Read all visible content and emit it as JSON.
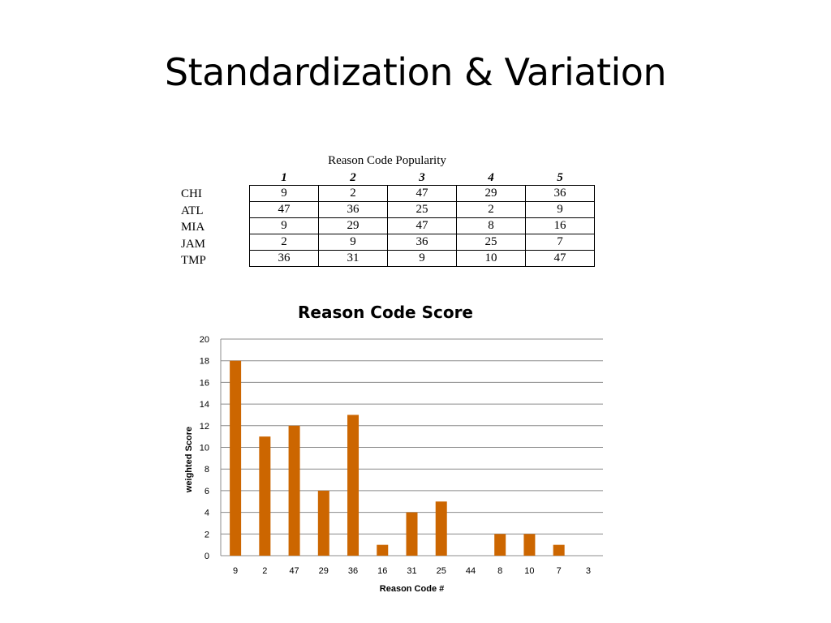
{
  "slide": {
    "title": "Standardization & Variation"
  },
  "table": {
    "caption": "Reason Code Popularity",
    "columns": [
      "1",
      "2",
      "3",
      "4",
      "5"
    ],
    "rows": [
      {
        "label": "CHI",
        "values": [
          "9",
          "2",
          "47",
          "29",
          "36"
        ]
      },
      {
        "label": "ATL",
        "values": [
          "47",
          "36",
          "25",
          "2",
          "9"
        ]
      },
      {
        "label": "MIA",
        "values": [
          "9",
          "29",
          "47",
          "8",
          "16"
        ]
      },
      {
        "label": "JAM",
        "values": [
          "2",
          "9",
          "36",
          "25",
          "7"
        ]
      },
      {
        "label": "TMP",
        "values": [
          "36",
          "31",
          "9",
          "10",
          "47"
        ]
      }
    ]
  },
  "chart_data": {
    "type": "bar",
    "title": "Reason Code Score",
    "xlabel": "Reason Code #",
    "ylabel": "weighted Score",
    "categories": [
      "9",
      "2",
      "47",
      "29",
      "36",
      "16",
      "31",
      "25",
      "44",
      "8",
      "10",
      "7",
      "3"
    ],
    "values": [
      18,
      11,
      12,
      6,
      13,
      1,
      4,
      5,
      0,
      2,
      2,
      1,
      0
    ],
    "ylim": [
      0,
      20
    ],
    "yticks": [
      0,
      2,
      4,
      6,
      8,
      10,
      12,
      14,
      16,
      18,
      20
    ],
    "grid": true,
    "legend": "none",
    "bar_color": "#cc6600"
  }
}
